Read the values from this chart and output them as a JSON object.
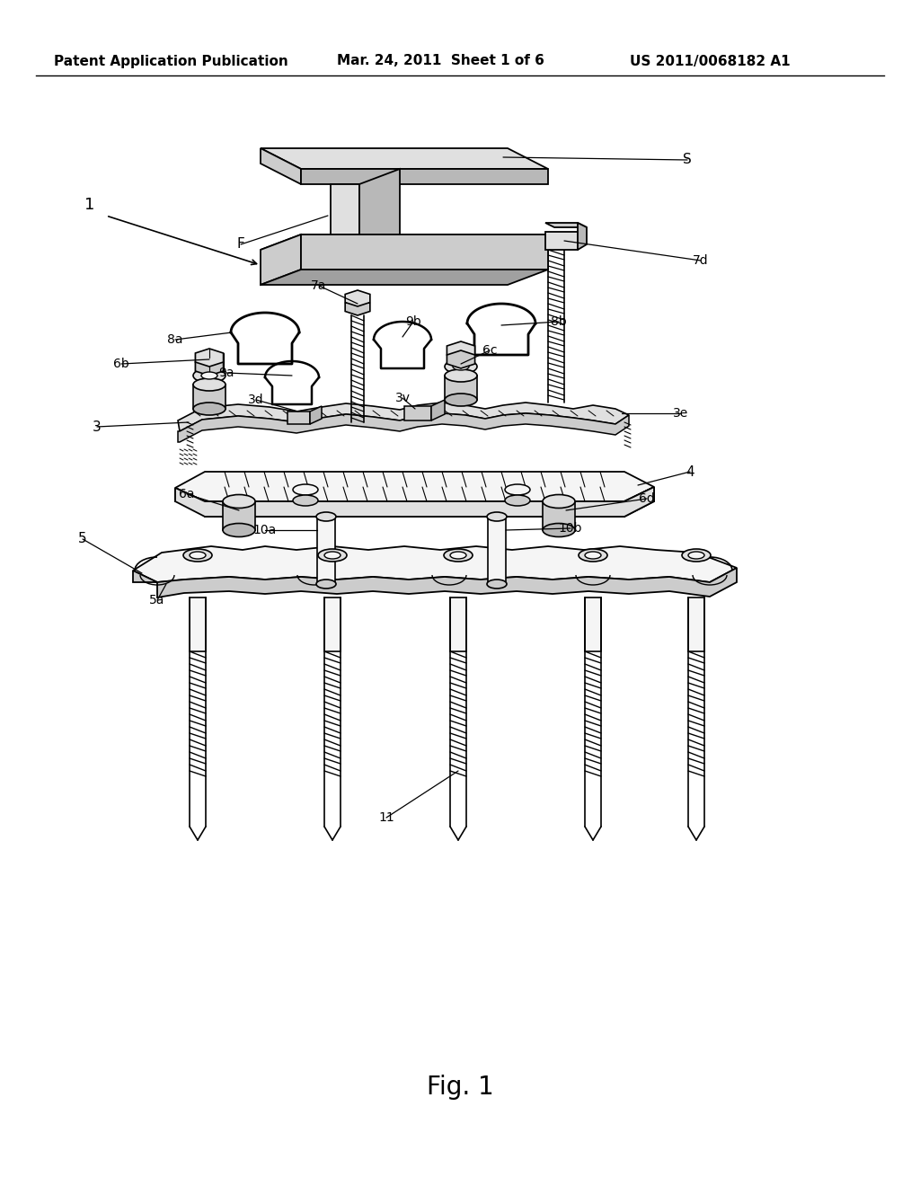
{
  "background_color": "#ffffff",
  "header_left": "Patent Application Publication",
  "header_mid": "Mar. 24, 2011  Sheet 1 of 6",
  "header_right": "US 2011/0068182 A1",
  "caption": "Fig. 1",
  "header_fontsize": 11,
  "caption_fontsize": 20,
  "fig_width": 10.24,
  "fig_height": 13.2,
  "g1": "#f5f5f5",
  "g2": "#e0e0e0",
  "g3": "#cccccc",
  "g4": "#b8b8b8",
  "g5": "#a0a0a0",
  "g6": "#888888",
  "bk": "#000000",
  "wh": "#ffffff"
}
